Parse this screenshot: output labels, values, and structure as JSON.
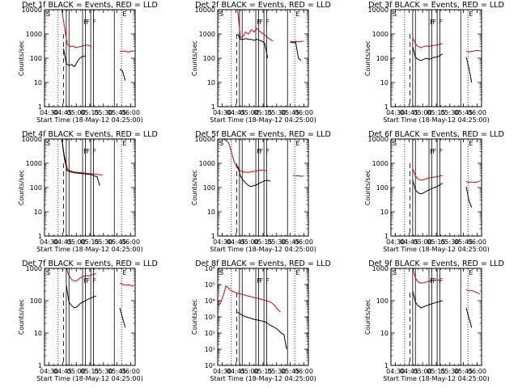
{
  "figure": {
    "xlabel": "Start Time (18-May-12 04:25:00)",
    "ylabel": "Counts/sec"
  },
  "chart_data": [
    {
      "type": "line",
      "title": "Det 1f BLACK = Events, RED = LLD",
      "scale": "log",
      "ylim": [
        1,
        10000
      ],
      "yticks": [
        "1",
        "10",
        "100",
        "1000",
        "10000"
      ],
      "xlim": [
        "04:25",
        "06:05"
      ],
      "xticks": [
        "04:30",
        "04:45",
        "05:00",
        "05:15",
        "05:30",
        "05:45",
        "06:00"
      ],
      "corner_letters": [
        "S",
        "E"
      ],
      "markers": [
        "F",
        "F",
        "F"
      ],
      "series": [
        {
          "color": "#e00000",
          "start": "04:44",
          "values": [
            10000,
            2000,
            400,
            300,
            320,
            280,
            290,
            300,
            330,
            350,
            340,
            300
          ]
        },
        {
          "color": "#000000",
          "start": "04:46",
          "values": [
            250,
            60,
            50,
            55,
            45,
            70,
            100,
            120,
            120
          ]
        },
        {
          "color": "#e00000",
          "start": "05:48",
          "values": [
            200,
            190,
            200,
            180,
            190,
            200
          ]
        },
        {
          "color": "#000000",
          "start": "05:48",
          "values": [
            35,
            30,
            12
          ]
        }
      ]
    },
    {
      "type": "line",
      "title": "Det 2f BLACK = Events, RED = LLD",
      "scale": "log",
      "ylim": [
        1,
        10000
      ],
      "yticks": [
        "1",
        "10",
        "100",
        "1000",
        "10000"
      ],
      "xlim": [
        "04:25",
        "06:05"
      ],
      "xticks": [
        "04:30",
        "04:45",
        "05:00",
        "05:15",
        "05:30",
        "05:45",
        "06:00"
      ],
      "corner_letters": [
        "S",
        "E"
      ],
      "markers": [
        "F",
        "F",
        "F"
      ],
      "series": [
        {
          "color": "#e00000",
          "start": "04:47",
          "values": [
            10000,
            700,
            800,
            1200,
            1000,
            1500,
            1200,
            1700,
            1300,
            1100,
            900,
            700,
            600,
            500
          ]
        },
        {
          "color": "#000000",
          "start": "04:47",
          "values": [
            1000,
            600,
            600,
            650,
            600,
            600,
            550,
            600,
            550,
            500,
            400,
            100
          ]
        },
        {
          "color": "#e00000",
          "start": "05:45",
          "values": [
            500,
            480,
            500,
            470,
            490,
            500
          ]
        },
        {
          "color": "#000000",
          "start": "05:45",
          "values": [
            450,
            430,
            460,
            100,
            80
          ]
        }
      ]
    },
    {
      "type": "line",
      "title": "Det 3f BLACK = Events, RED = LLD",
      "scale": "log",
      "ylim": [
        1,
        10000
      ],
      "yticks": [
        "1",
        "10",
        "100",
        "1000",
        "10000"
      ],
      "xlim": [
        "04:25",
        "06:05"
      ],
      "xticks": [
        "04:30",
        "04:45",
        "05:00",
        "05:15",
        "05:30",
        "05:45",
        "06:00"
      ],
      "corner_letters": [
        "S",
        "E"
      ],
      "markers": [
        "F",
        "F",
        "F"
      ],
      "series": [
        {
          "color": "#e00000",
          "start": "04:49",
          "values": [
            700,
            400,
            300,
            280,
            300,
            320,
            300,
            330,
            340,
            350,
            380,
            400
          ]
        },
        {
          "color": "#000000",
          "start": "04:49",
          "values": [
            300,
            110,
            90,
            80,
            90,
            100,
            90,
            100,
            110,
            110,
            130,
            150
          ]
        },
        {
          "color": "#e00000",
          "start": "05:48",
          "values": [
            200,
            180,
            190,
            200,
            210,
            200
          ]
        },
        {
          "color": "#000000",
          "start": "05:48",
          "values": [
            110,
            40,
            10
          ]
        }
      ]
    },
    {
      "type": "line",
      "title": "Det 4f BLACK = Events, RED = LLD",
      "scale": "log",
      "ylim": [
        1,
        10000
      ],
      "yticks": [
        "1",
        "10",
        "100",
        "1000",
        "10000"
      ],
      "xlim": [
        "04:25",
        "06:05"
      ],
      "xticks": [
        "04:30",
        "04:45",
        "05:00",
        "05:15",
        "05:30",
        "05:45",
        "06:00"
      ],
      "corner_letters": [
        "S",
        "E"
      ],
      "markers": [
        "F",
        "F",
        "F"
      ],
      "series": [
        {
          "color": "#e00000",
          "start": "04:44",
          "values": [
            10000,
            2000,
            600,
            500,
            450,
            430,
            420,
            410,
            400,
            390,
            380,
            370,
            360,
            350,
            340,
            330
          ]
        },
        {
          "color": "#000000",
          "start": "04:44",
          "values": [
            10000,
            1500,
            500,
            450,
            420,
            400,
            390,
            380,
            370,
            360,
            350,
            340,
            300,
            280,
            120
          ]
        }
      ]
    },
    {
      "type": "line",
      "title": "Det 5f BLACK = Events, RED = LLD",
      "scale": "log",
      "ylim": [
        1,
        10000
      ],
      "yticks": [
        "1",
        "10",
        "100",
        "1000",
        "10000"
      ],
      "xlim": [
        "04:25",
        "06:05"
      ],
      "xticks": [
        "04:30",
        "04:45",
        "05:00",
        "05:15",
        "05:30",
        "05:45",
        "06:00"
      ],
      "corner_letters": [
        "S",
        "E"
      ],
      "markers": [
        "F",
        "F",
        "F"
      ],
      "series": [
        {
          "color": "#e00000",
          "start": "04:25",
          "values": [
            10000,
            10000,
            10000,
            9000,
            7000,
            3000,
            1200,
            700,
            500,
            450,
            430,
            420,
            440,
            460,
            480,
            500,
            520,
            510,
            500
          ]
        },
        {
          "color": "#000000",
          "start": "04:47",
          "values": [
            800,
            300,
            200,
            150,
            120,
            110,
            120,
            130,
            150,
            170,
            190,
            200,
            180
          ]
        },
        {
          "color": "#e00000",
          "start": "05:48",
          "values": [
            320,
            300,
            310,
            290,
            300
          ]
        }
      ]
    },
    {
      "type": "line",
      "title": "Det 6f BLACK = Events, RED = LLD",
      "scale": "log",
      "ylim": [
        1,
        10000
      ],
      "yticks": [
        "1",
        "10",
        "100",
        "1000",
        "10000"
      ],
      "xlim": [
        "04:25",
        "06:05"
      ],
      "xticks": [
        "04:30",
        "04:45",
        "05:00",
        "05:15",
        "05:30",
        "05:45",
        "06:00"
      ],
      "corner_letters": [
        "S",
        "E"
      ],
      "markers": [
        "F",
        "F",
        "F"
      ],
      "series": [
        {
          "color": "#e00000",
          "start": "04:49",
          "values": [
            600,
            300,
            220,
            200,
            210,
            230,
            250,
            260,
            270,
            280,
            300,
            310
          ]
        },
        {
          "color": "#000000",
          "start": "04:49",
          "values": [
            200,
            80,
            60,
            55,
            60,
            70,
            80,
            90,
            100,
            110,
            130,
            150
          ]
        },
        {
          "color": "#e00000",
          "start": "05:48",
          "values": [
            180,
            160,
            170,
            160,
            170,
            180
          ]
        },
        {
          "color": "#000000",
          "start": "05:48",
          "values": [
            110,
            30,
            15
          ]
        }
      ]
    },
    {
      "type": "line",
      "title": "Det 7f BLACK = Events, RED = LLD",
      "scale": "log",
      "ylim": [
        1,
        1000
      ],
      "yticks": [
        "1",
        "10",
        "100",
        "1000"
      ],
      "xlim": [
        "04:25",
        "06:05"
      ],
      "xticks": [
        "04:30",
        "04:45",
        "05:00",
        "05:15",
        "05:30",
        "05:45",
        "06:00"
      ],
      "corner_letters": [
        "S",
        "E"
      ],
      "markers": [
        "F",
        "F",
        "F"
      ],
      "series": [
        {
          "color": "#e00000",
          "start": "04:49",
          "values": [
            1000,
            600,
            450,
            400,
            420,
            500,
            550,
            600,
            580,
            620,
            650,
            700
          ]
        },
        {
          "color": "#000000",
          "start": "04:49",
          "values": [
            300,
            90,
            70,
            60,
            65,
            80,
            90,
            100,
            110,
            120,
            130,
            140
          ]
        },
        {
          "color": "#e00000",
          "start": "05:48",
          "values": [
            350,
            320,
            300,
            310,
            300,
            280
          ]
        },
        {
          "color": "#000000",
          "start": "05:48",
          "values": [
            60,
            30,
            15
          ]
        }
      ]
    },
    {
      "type": "line",
      "title": "Det 8f BLACK = Events, RED = LLD",
      "scale": "log",
      "ylim": [
        1,
        1000000
      ],
      "yticks": [
        "10⁰",
        "10¹",
        "10²",
        "10³",
        "10⁴",
        "10⁵",
        "10⁶"
      ],
      "xlim": [
        "04:25",
        "06:05"
      ],
      "xticks": [
        "04:30",
        "04:45",
        "05:00",
        "05:15",
        "05:30",
        "05:45",
        "06:00"
      ],
      "corner_letters": [
        "S",
        "E"
      ],
      "markers": [
        "F",
        "F",
        "F"
      ],
      "series": [
        {
          "color": "#e00000",
          "start": "04:25",
          "values": [
            5000,
            7000,
            20000,
            80000,
            60000,
            40000,
            35000,
            30000,
            27000,
            25000,
            22000,
            20000,
            18000,
            16000,
            15000,
            14000,
            12000,
            11000,
            10000,
            9000,
            7000,
            5000,
            3000,
            2000
          ]
        },
        {
          "color": "#000000",
          "start": "04:47",
          "values": [
            2000,
            1500,
            1200,
            1000,
            900,
            800,
            700,
            650,
            600,
            550,
            500,
            400,
            300,
            250,
            200,
            150,
            100,
            80,
            10
          ]
        }
      ]
    },
    {
      "type": "line",
      "title": "Det 9f BLACK = Events, RED = LLD",
      "scale": "log",
      "ylim": [
        1,
        1000
      ],
      "yticks": [
        "1",
        "10",
        "100",
        "1000"
      ],
      "xlim": [
        "04:25",
        "06:05"
      ],
      "xticks": [
        "04:30",
        "04:45",
        "05:00",
        "05:15",
        "05:30",
        "05:45",
        "06:00"
      ],
      "corner_letters": [
        "S",
        "E"
      ],
      "markers": [
        "F",
        "F",
        "F"
      ],
      "series": [
        {
          "color": "#e00000",
          "start": "04:49",
          "values": [
            1000,
            500,
            380,
            350,
            360,
            380,
            400,
            420,
            430,
            440,
            430,
            420
          ]
        },
        {
          "color": "#000000",
          "start": "04:49",
          "values": [
            200,
            90,
            70,
            60,
            65,
            70,
            75,
            80,
            85,
            90,
            95,
            100
          ]
        },
        {
          "color": "#e00000",
          "start": "05:48",
          "values": [
            220,
            200,
            210,
            190,
            180,
            160
          ]
        },
        {
          "color": "#000000",
          "start": "05:48",
          "values": [
            60,
            30,
            15
          ]
        }
      ]
    }
  ]
}
